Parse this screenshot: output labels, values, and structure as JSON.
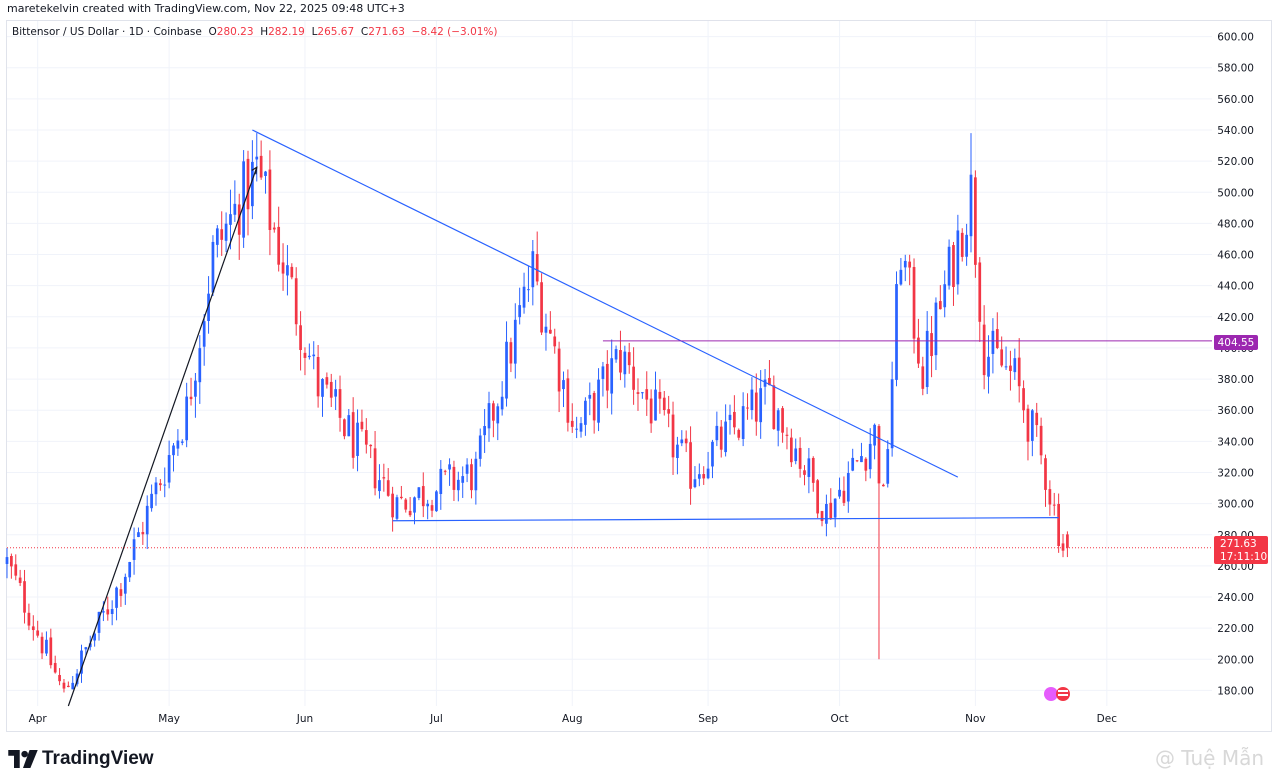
{
  "header": {
    "attribution": "maretekelvin created with TradingView.com, Nov 22, 2025 09:48 UTC+3"
  },
  "legend": {
    "symbol": "Bittensor / US Dollar · 1D · Coinbase",
    "o_label": "O",
    "o_value": "280.23",
    "h_label": "H",
    "h_value": "282.19",
    "l_label": "L",
    "l_value": "265.67",
    "c_label": "C",
    "c_value": "271.63",
    "change": "−8.42 (−3.01%)"
  },
  "price_tags": {
    "level": "404.55",
    "last": "271.63",
    "countdown": "17:11:10"
  },
  "footer": {
    "brand": "TradingView",
    "watermark": "@ Tuệ Mẫn"
  },
  "colors": {
    "up": "#089981",
    "up_candle": "#2962ff",
    "down": "#f23645",
    "trendline": "#2962ff",
    "level_line": "#9c27b0",
    "grid": "#f0f3fa"
  },
  "chart_data": {
    "type": "candlestick",
    "y_axis": {
      "min": 170,
      "max": 610,
      "ticks": [
        180,
        200,
        220,
        240,
        260,
        280,
        300,
        320,
        340,
        360,
        380,
        400,
        420,
        440,
        460,
        480,
        500,
        520,
        540,
        560,
        580,
        600
      ]
    },
    "x_axis": {
      "months": [
        "Apr",
        "May",
        "Jun",
        "Jul",
        "Aug",
        "Sep",
        "Oct",
        "Nov",
        "Dec"
      ],
      "start_date": "2025-03-25",
      "end_date": "2025-12-25"
    },
    "key_points": [
      {
        "date": "2025-03-25",
        "close": 262
      },
      {
        "date": "2025-04-07",
        "close": 178
      },
      {
        "date": "2025-04-20",
        "close": 250
      },
      {
        "date": "2025-05-05",
        "close": 360
      },
      {
        "date": "2025-05-11",
        "close": 460
      },
      {
        "date": "2025-05-21",
        "close": 515
      },
      {
        "date": "2025-06-04",
        "close": 375
      },
      {
        "date": "2025-06-22",
        "close": 300
      },
      {
        "date": "2025-07-10",
        "close": 320
      },
      {
        "date": "2025-07-23",
        "close": 450
      },
      {
        "date": "2025-08-02",
        "close": 345
      },
      {
        "date": "2025-08-12",
        "close": 395
      },
      {
        "date": "2025-08-28",
        "close": 320
      },
      {
        "date": "2025-09-15",
        "close": 370
      },
      {
        "date": "2025-09-28",
        "close": 295
      },
      {
        "date": "2025-10-09",
        "close": 345
      },
      {
        "date": "2025-10-11",
        "close": 300
      },
      {
        "date": "2025-10-15",
        "close": 465
      },
      {
        "date": "2025-10-20",
        "close": 385
      },
      {
        "date": "2025-10-31",
        "close": 500
      },
      {
        "date": "2025-11-03",
        "close": 400
      },
      {
        "date": "2025-11-10",
        "close": 380
      },
      {
        "date": "2025-11-17",
        "close": 320
      },
      {
        "date": "2025-11-21",
        "close": 272
      }
    ],
    "spikes": [
      {
        "date": "2025-10-10",
        "low": 200
      },
      {
        "date": "2025-10-31",
        "high": 538
      },
      {
        "date": "2025-05-21",
        "high": 538
      }
    ],
    "last": {
      "date": "2025-11-22",
      "open": 280.23,
      "high": 282.19,
      "low": 265.67,
      "close": 271.63
    },
    "lines": [
      {
        "kind": "trendline",
        "from": {
          "date": "2025-04-08",
          "price": 170
        },
        "to": {
          "date": "2025-05-21",
          "price": 516
        }
      },
      {
        "kind": "trendline",
        "from": {
          "date": "2025-05-20",
          "price": 540
        },
        "to": {
          "date": "2025-10-28",
          "price": 317
        }
      },
      {
        "kind": "trendline",
        "from": {
          "date": "2025-06-21",
          "price": 289
        },
        "to": {
          "date": "2025-11-20",
          "price": 291
        }
      },
      {
        "kind": "horizontal",
        "price": 404.55,
        "from_date": "2025-08-08",
        "to_date": "2025-12-25"
      }
    ]
  }
}
